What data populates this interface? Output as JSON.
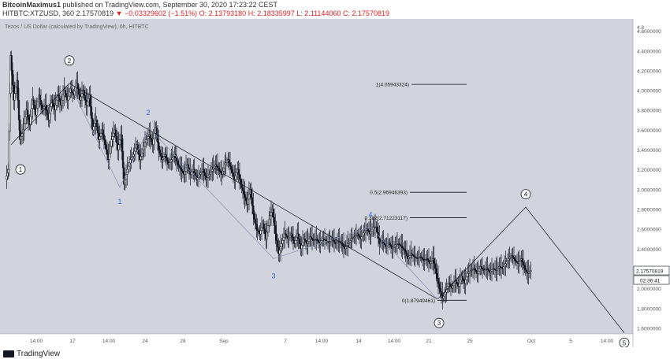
{
  "header": {
    "author": "BitcoinMaximus1",
    "published": "published on TradingView.com, September 30, 2020 17:23:22 CEST",
    "symbol": "HITBTC:XTZUSD, 360",
    "price": "2.17570819",
    "change": "−0.03329602 (−1.51%)",
    "ohlc": "O: 2.13793180 H: 2.18335997 L: 2.11144060 C: 2.17570819"
  },
  "chart_data": {
    "type": "candlestick",
    "title": "Tezos / US Dollar (calculated by TradingView), 6h, HITBTC",
    "colors": {
      "background": "#d1d4dc",
      "candle": "#131722",
      "trend": "#131722",
      "wave": "#8a8fb5",
      "label_blue": "#2f6bd6",
      "current_price_bg": "#ffffff"
    },
    "y_ticks": [
      "4.6000000",
      "4.4000000",
      "4.2000000",
      "4.0000000",
      "3.8000000",
      "3.6000000",
      "3.4000000",
      "3.2000000",
      "3.0000000",
      "2.8000000",
      "2.6000000",
      "2.4000000",
      "2.2000000",
      "2.0000000",
      "1.8000000",
      "1.6000000"
    ],
    "x_ticks": [
      "14:00",
      "17",
      "14:00",
      "24",
      "28",
      "Sep",
      "7",
      "14:00",
      "14",
      "14:00",
      "21",
      "25",
      "Oct",
      "5",
      "14:00"
    ],
    "current_price": "2.17570819",
    "countdown": "02:36:41",
    "fib_levels": [
      {
        "label": "1(4.05943324)",
        "value": 4.05943324
      },
      {
        "label": "0.5(2.96946393)",
        "value": 2.96946393
      },
      {
        "label": "0.382(2.71223117)",
        "value": 2.71223117
      },
      {
        "label": "0(1.87949461)",
        "value": 1.87949461
      }
    ],
    "wave_labels": [
      {
        "text": "1",
        "style": "circle"
      },
      {
        "text": "2",
        "style": "circle"
      },
      {
        "text": "3",
        "style": "circle"
      },
      {
        "text": "4",
        "style": "circle"
      },
      {
        "text": "5",
        "style": "circle"
      },
      {
        "text": "1",
        "style": "blue"
      },
      {
        "text": "2",
        "style": "blue"
      },
      {
        "text": "3",
        "style": "blue"
      },
      {
        "text": "4",
        "style": "blue"
      }
    ],
    "price_path": [
      [
        0,
        3.1
      ],
      [
        3,
        3.2
      ],
      [
        6,
        4.35
      ],
      [
        10,
        3.9
      ],
      [
        14,
        4.1
      ],
      [
        18,
        3.5
      ],
      [
        22,
        3.6
      ],
      [
        26,
        3.8
      ],
      [
        30,
        3.65
      ],
      [
        34,
        3.9
      ],
      [
        38,
        3.75
      ],
      [
        42,
        3.95
      ],
      [
        46,
        3.8
      ],
      [
        50,
        3.85
      ],
      [
        54,
        3.7
      ],
      [
        58,
        3.9
      ],
      [
        62,
        3.8
      ],
      [
        66,
        3.95
      ],
      [
        70,
        3.85
      ],
      [
        74,
        4.0
      ],
      [
        78,
        3.9
      ],
      [
        82,
        4.02
      ],
      [
        86,
        3.95
      ],
      [
        90,
        4.07
      ],
      [
        94,
        3.9
      ],
      [
        98,
        4.0
      ],
      [
        102,
        3.85
      ],
      [
        106,
        3.95
      ],
      [
        110,
        3.6
      ],
      [
        114,
        3.7
      ],
      [
        118,
        3.5
      ],
      [
        122,
        3.6
      ],
      [
        126,
        3.45
      ],
      [
        130,
        3.3
      ],
      [
        134,
        3.5
      ],
      [
        138,
        3.6
      ],
      [
        142,
        3.4
      ],
      [
        146,
        3.55
      ],
      [
        150,
        3.05
      ],
      [
        154,
        3.2
      ],
      [
        158,
        3.3
      ],
      [
        162,
        3.35
      ],
      [
        166,
        3.45
      ],
      [
        170,
        3.3
      ],
      [
        174,
        3.4
      ],
      [
        178,
        3.5
      ],
      [
        182,
        3.55
      ],
      [
        186,
        3.45
      ],
      [
        190,
        3.62
      ],
      [
        194,
        3.4
      ],
      [
        198,
        3.3
      ],
      [
        202,
        3.35
      ],
      [
        206,
        3.25
      ],
      [
        210,
        3.3
      ],
      [
        214,
        3.35
      ],
      [
        218,
        3.25
      ],
      [
        222,
        3.2
      ],
      [
        226,
        3.15
      ],
      [
        230,
        3.25
      ],
      [
        234,
        3.15
      ],
      [
        238,
        3.2
      ],
      [
        242,
        3.1
      ],
      [
        246,
        3.15
      ],
      [
        250,
        3.2
      ],
      [
        254,
        3.1
      ],
      [
        258,
        3.15
      ],
      [
        262,
        3.2
      ],
      [
        266,
        3.25
      ],
      [
        270,
        3.2
      ],
      [
        274,
        3.15
      ],
      [
        278,
        3.25
      ],
      [
        282,
        3.3
      ],
      [
        286,
        3.2
      ],
      [
        290,
        3.1
      ],
      [
        294,
        3.2
      ],
      [
        298,
        3.05
      ],
      [
        302,
        2.95
      ],
      [
        306,
        2.85
      ],
      [
        310,
        3.0
      ],
      [
        314,
        2.75
      ],
      [
        318,
        2.6
      ],
      [
        322,
        2.55
      ],
      [
        326,
        2.65
      ],
      [
        330,
        2.5
      ],
      [
        334,
        2.7
      ],
      [
        338,
        2.8
      ],
      [
        342,
        2.55
      ],
      [
        346,
        2.35
      ],
      [
        350,
        2.45
      ],
      [
        354,
        2.55
      ],
      [
        358,
        2.5
      ],
      [
        362,
        2.55
      ],
      [
        366,
        2.45
      ],
      [
        370,
        2.55
      ],
      [
        374,
        2.4
      ],
      [
        378,
        2.5
      ],
      [
        382,
        2.45
      ],
      [
        386,
        2.52
      ],
      [
        390,
        2.48
      ],
      [
        394,
        2.5
      ],
      [
        398,
        2.45
      ],
      [
        402,
        2.5
      ],
      [
        406,
        2.48
      ],
      [
        410,
        2.46
      ],
      [
        414,
        2.5
      ],
      [
        418,
        2.45
      ],
      [
        422,
        2.48
      ],
      [
        426,
        2.45
      ],
      [
        430,
        2.4
      ],
      [
        434,
        2.45
      ],
      [
        438,
        2.5
      ],
      [
        442,
        2.52
      ],
      [
        446,
        2.55
      ],
      [
        450,
        2.5
      ],
      [
        454,
        2.56
      ],
      [
        458,
        2.6
      ],
      [
        462,
        2.55
      ],
      [
        466,
        2.62
      ],
      [
        470,
        2.62
      ],
      [
        474,
        2.45
      ],
      [
        478,
        2.48
      ],
      [
        482,
        2.42
      ],
      [
        486,
        2.46
      ],
      [
        490,
        2.4
      ],
      [
        494,
        2.44
      ],
      [
        498,
        2.45
      ],
      [
        502,
        2.42
      ],
      [
        506,
        2.38
      ],
      [
        510,
        2.3
      ],
      [
        514,
        2.35
      ],
      [
        518,
        2.32
      ],
      [
        522,
        2.3
      ],
      [
        526,
        2.32
      ],
      [
        530,
        2.28
      ],
      [
        534,
        2.3
      ],
      [
        538,
        2.25
      ],
      [
        542,
        2.3
      ],
      [
        546,
        2.15
      ],
      [
        550,
        2.0
      ],
      [
        554,
        1.9
      ],
      [
        558,
        1.96
      ],
      [
        562,
        2.05
      ],
      [
        566,
        2.0
      ],
      [
        570,
        2.08
      ],
      [
        574,
        2.02
      ],
      [
        578,
        2.12
      ],
      [
        582,
        2.05
      ],
      [
        586,
        2.15
      ],
      [
        590,
        2.18
      ],
      [
        594,
        2.2
      ],
      [
        598,
        2.15
      ],
      [
        602,
        2.22
      ],
      [
        606,
        2.18
      ],
      [
        610,
        2.2
      ],
      [
        614,
        2.16
      ],
      [
        618,
        2.2
      ],
      [
        622,
        2.18
      ],
      [
        626,
        2.22
      ],
      [
        630,
        2.2
      ],
      [
        634,
        2.25
      ],
      [
        638,
        2.3
      ],
      [
        642,
        2.33
      ],
      [
        646,
        2.28
      ],
      [
        650,
        2.25
      ],
      [
        654,
        2.3
      ],
      [
        658,
        2.2
      ],
      [
        662,
        2.15
      ],
      [
        666,
        2.18
      ]
    ]
  }
}
